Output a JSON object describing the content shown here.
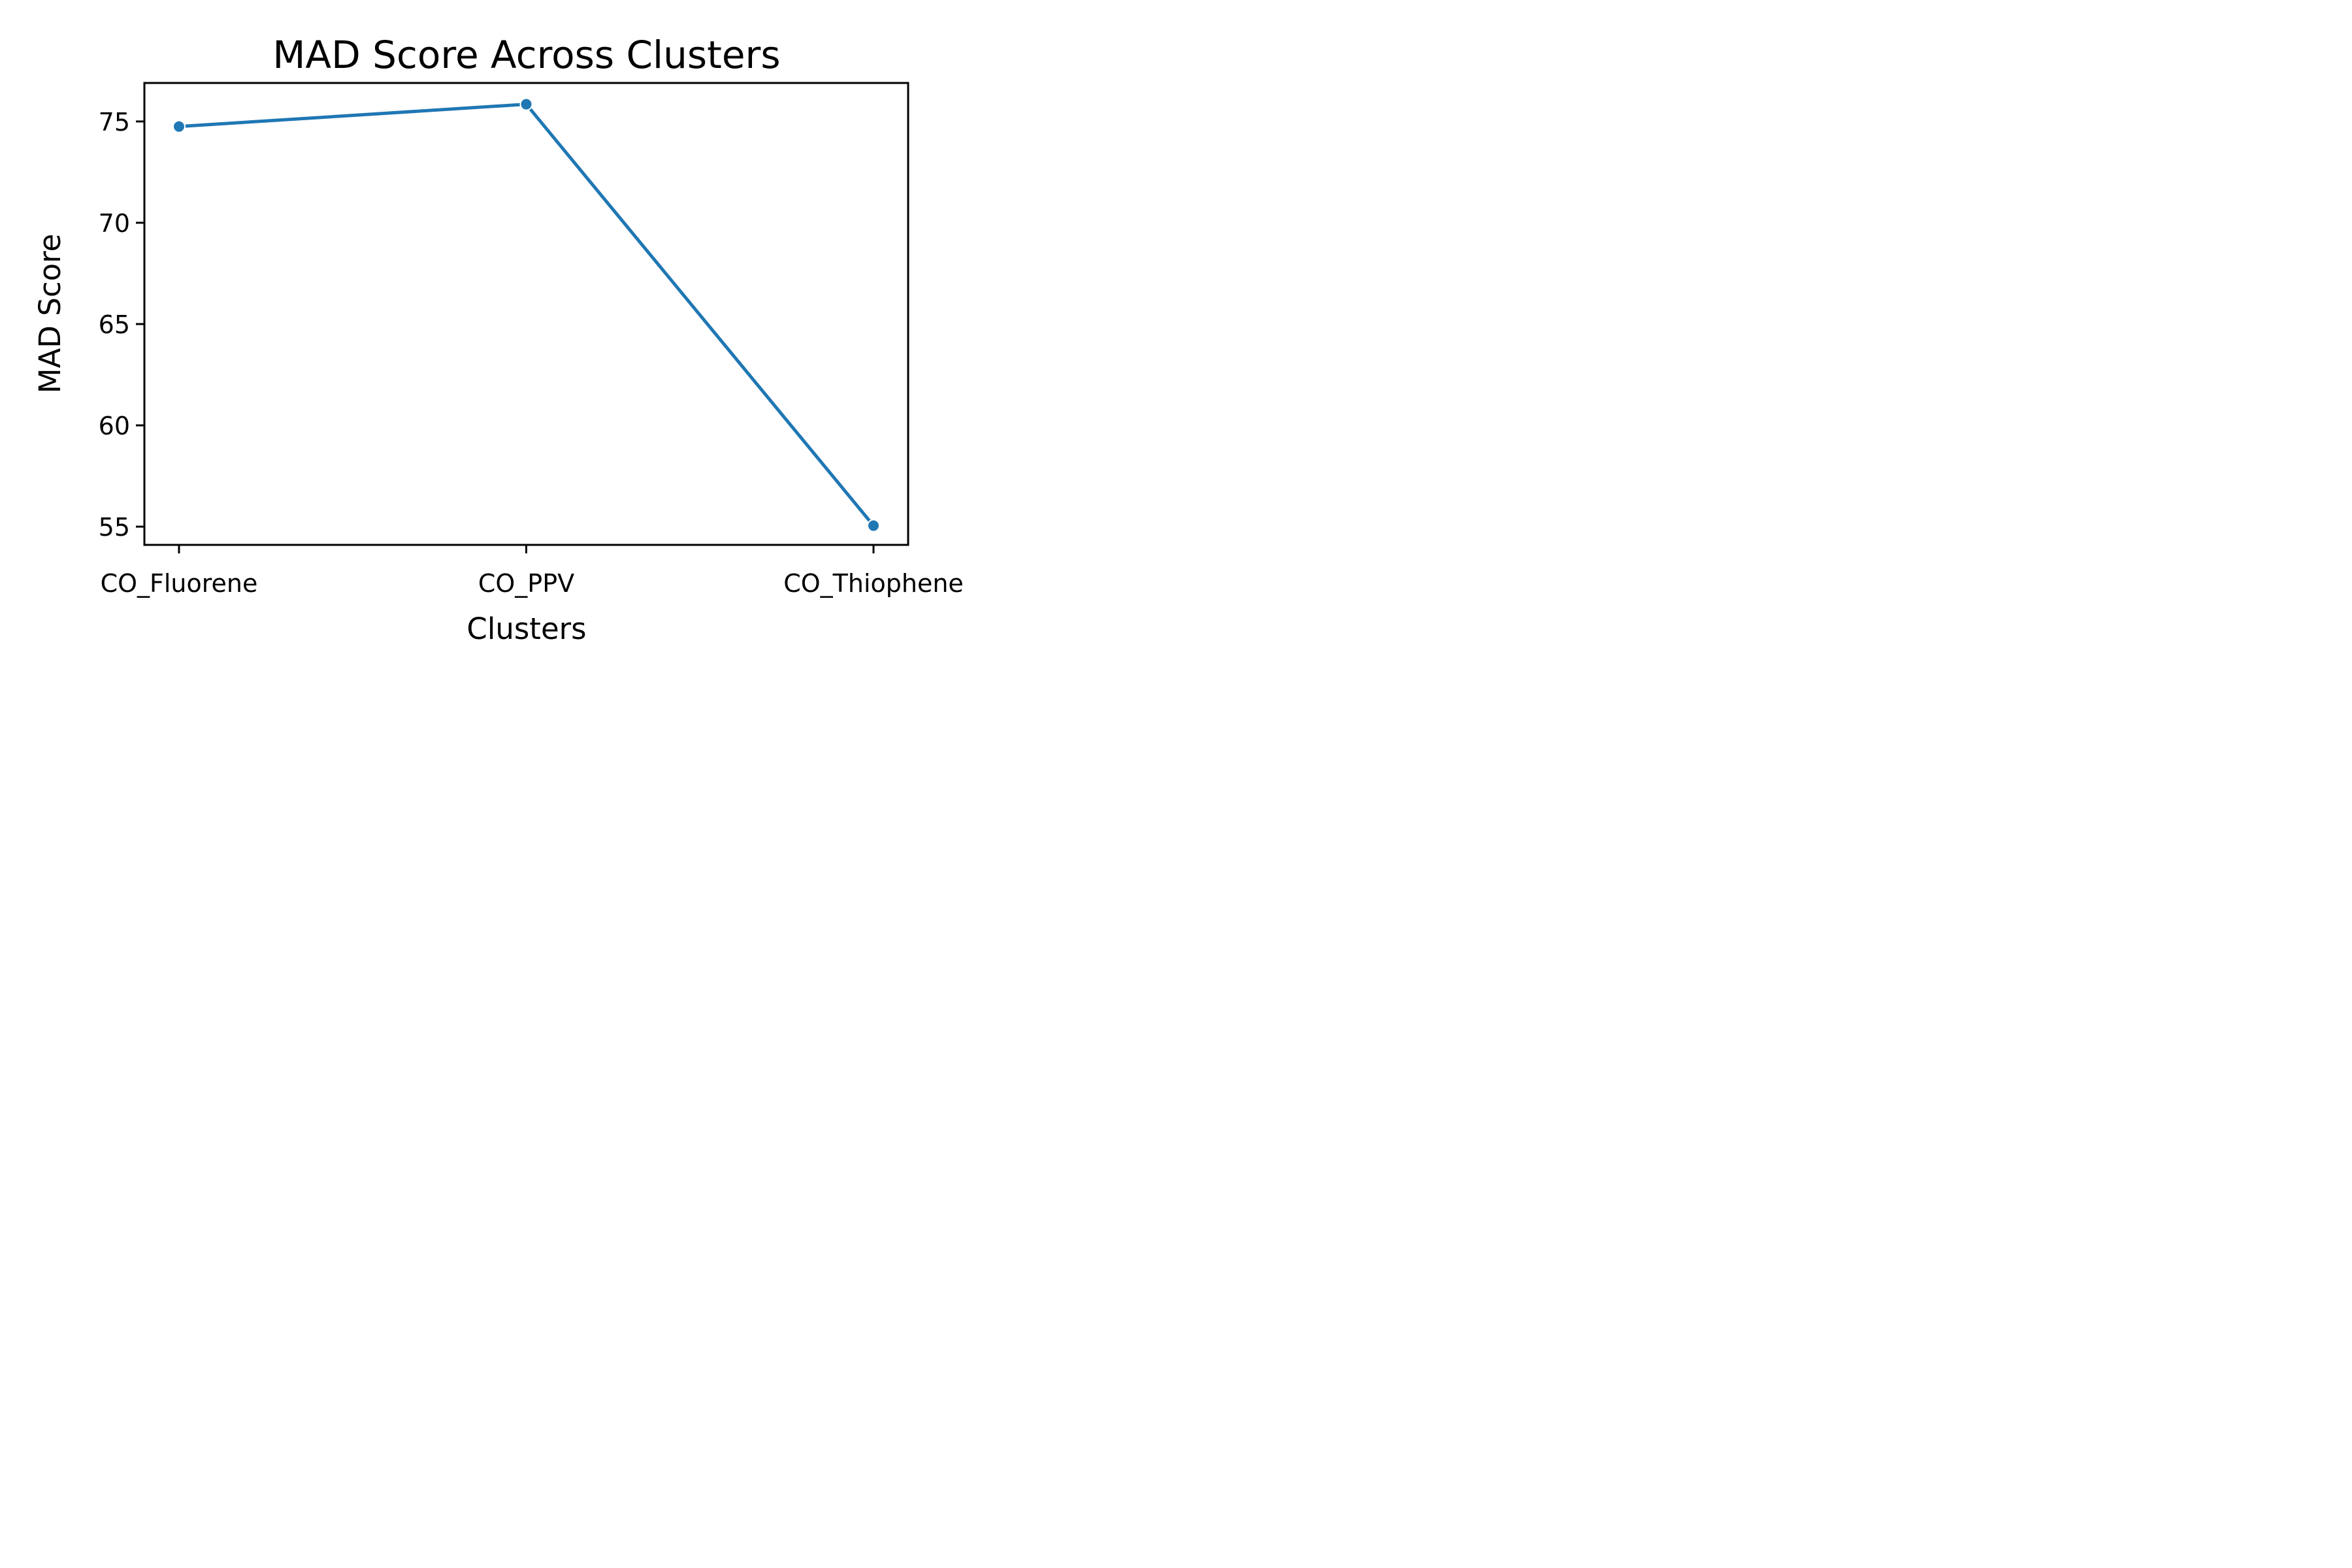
{
  "chart_data": {
    "type": "line",
    "title": "MAD Score Across Clusters",
    "xlabel": "Clusters",
    "ylabel": "MAD Score",
    "categories": [
      "CO_Fluorene",
      "CO_PPV",
      "CO_Thiophene"
    ],
    "series": [
      {
        "values": [
          74.75,
          75.85,
          55.05
        ],
        "color": "#1f77b4",
        "marker": "circle"
      }
    ],
    "yticks": [
      55,
      60,
      65,
      70,
      75
    ],
    "ylim": [
      54.1,
      76.9
    ],
    "grid": false,
    "legend": "none"
  }
}
